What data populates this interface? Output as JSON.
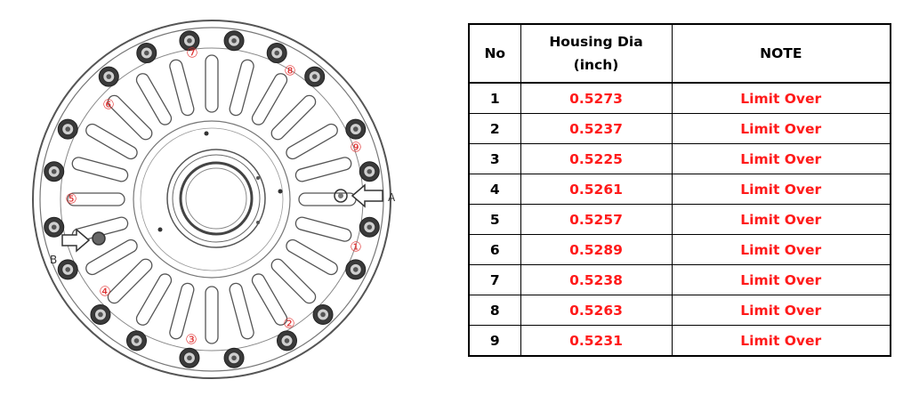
{
  "diagram": {
    "labels": {
      "arrow_a": "A",
      "arrow_b": "B"
    },
    "hole_markers": [
      "①",
      "②",
      "③",
      "④",
      "⑤",
      "⑥",
      "⑦",
      "⑧",
      "⑨"
    ],
    "marker_color": "#e03030"
  },
  "table": {
    "headers": {
      "no": "No",
      "housing_dia_line1": "Housing Dia",
      "housing_dia_line2": "(inch)",
      "note": "NOTE"
    },
    "rows": [
      {
        "no": "1",
        "dia": "0.5273",
        "note": "Limit Over"
      },
      {
        "no": "2",
        "dia": "0.5237",
        "note": "Limit Over"
      },
      {
        "no": "3",
        "dia": "0.5225",
        "note": "Limit Over"
      },
      {
        "no": "4",
        "dia": "0.5261",
        "note": "Limit Over"
      },
      {
        "no": "5",
        "dia": "0.5257",
        "note": "Limit Over"
      },
      {
        "no": "6",
        "dia": "0.5289",
        "note": "Limit Over"
      },
      {
        "no": "7",
        "dia": "0.5238",
        "note": "Limit Over"
      },
      {
        "no": "8",
        "dia": "0.5263",
        "note": "Limit Over"
      },
      {
        "no": "9",
        "dia": "0.5231",
        "note": "Limit Over"
      }
    ],
    "value_color": "#ff1a1a"
  }
}
